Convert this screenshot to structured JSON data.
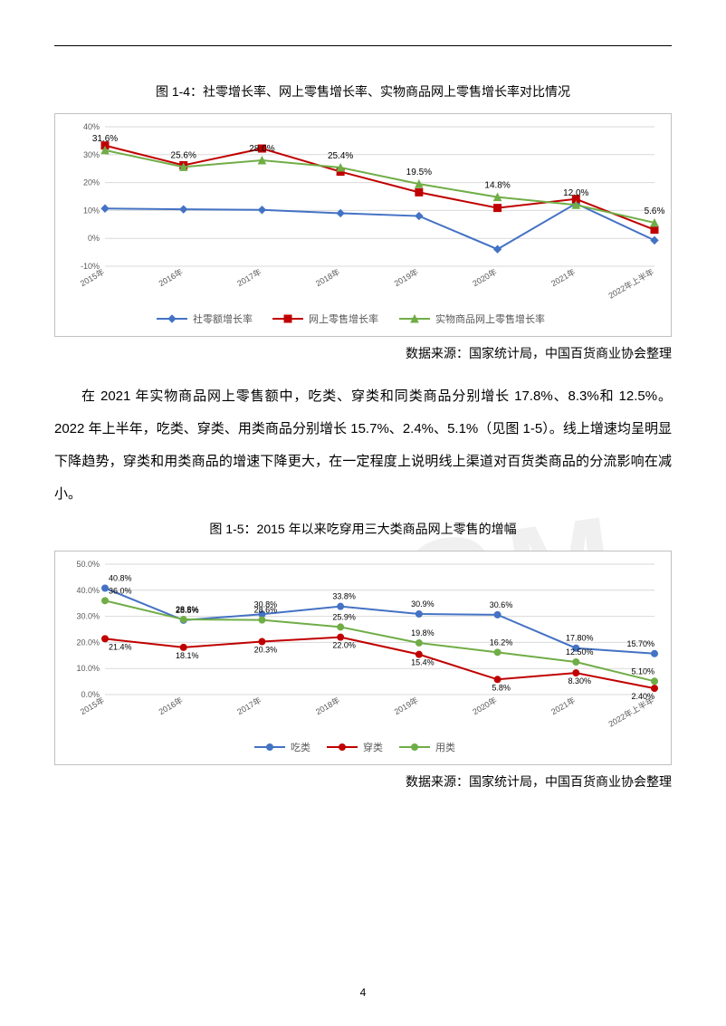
{
  "page_number": "4",
  "watermark_text": "CCAGM",
  "chart1": {
    "type": "line",
    "title": "图 1-4：社零增长率、网上零售增长率、实物商品网上零售增长率对比情况",
    "source": "数据来源：国家统计局，中国百货商业协会整理",
    "categories": [
      "2015年",
      "2016年",
      "2017年",
      "2018年",
      "2019年",
      "2020年",
      "2021年",
      "2022年上半年"
    ],
    "ylim": [
      -10,
      40
    ],
    "ytick_step": 10,
    "ytick_labels": [
      "-10%",
      "0%",
      "10%",
      "20%",
      "30%",
      "40%"
    ],
    "grid_color": "#d9d9d9",
    "background_color": "#ffffff",
    "axis_color": "#808080",
    "label_fontsize": 9,
    "tick_fontsize": 9,
    "data_label_fontsize": 10,
    "line_width": 2,
    "marker_size": 4,
    "series": [
      {
        "name": "社零额增长率",
        "color": "#4472c4",
        "marker": "diamond",
        "values": [
          10.7,
          10.4,
          10.2,
          9.0,
          8.0,
          -3.9,
          12.5,
          -0.7
        ]
      },
      {
        "name": "网上零售增长率",
        "color": "#c00000",
        "marker": "square",
        "values": [
          33.3,
          26.2,
          32.2,
          23.9,
          16.5,
          10.9,
          14.1,
          3.1
        ]
      },
      {
        "name": "实物商品网上零售增长率",
        "color": "#70ad47",
        "marker": "triangle",
        "values": [
          31.6,
          25.6,
          28.0,
          25.4,
          19.5,
          14.8,
          12.0,
          5.6
        ]
      }
    ],
    "data_labels": [
      {
        "x": 0,
        "text": "31.6%"
      },
      {
        "x": 1,
        "text": "25.6%"
      },
      {
        "x": 2,
        "text": "28.0%"
      },
      {
        "x": 3,
        "text": "25.4%"
      },
      {
        "x": 4,
        "text": "19.5%"
      },
      {
        "x": 5,
        "text": "14.8%"
      },
      {
        "x": 6,
        "text": "12.0%"
      },
      {
        "x": 7,
        "text": "5.6%"
      }
    ]
  },
  "paragraph_text": "在 2021 年实物商品网上零售额中，吃类、穿类和同类商品分别增长 17.8%、8.3%和 12.5%。2022 年上半年，吃类、穿类、用类商品分别增长 15.7%、2.4%、5.1%（见图 1-5）。线上增速均呈明显下降趋势，穿类和用类商品的增速下降更大，在一定程度上说明线上渠道对百货类商品的分流影响在减小。",
  "chart2": {
    "type": "line",
    "title": "图 1-5：2015 年以来吃穿用三大类商品网上零售的增幅",
    "source": "数据来源：国家统计局，中国百货商业协会整理",
    "categories": [
      "2015年",
      "2016年",
      "2017年",
      "2018年",
      "2019年",
      "2020年",
      "2021年",
      "2022年上半年"
    ],
    "ylim": [
      0,
      50
    ],
    "ytick_step": 10,
    "ytick_labels": [
      "0.0%",
      "10.0%",
      "20.0%",
      "30.0%",
      "40.0%",
      "50.0%"
    ],
    "grid_color": "#d9d9d9",
    "background_color": "#ffffff",
    "axis_color": "#808080",
    "label_fontsize": 9,
    "tick_fontsize": 9,
    "data_label_fontsize": 9,
    "line_width": 2,
    "marker_size": 3.5,
    "series": [
      {
        "name": "吃类",
        "color": "#4472c4",
        "marker": "circle",
        "values": [
          40.8,
          28.5,
          30.8,
          33.8,
          30.9,
          30.6,
          17.8,
          15.7
        ],
        "labels": [
          "40.8%",
          "28.5%",
          "30.8%",
          "33.8%",
          "30.9%",
          "30.6%",
          "17.80%",
          "15.70%"
        ]
      },
      {
        "name": "穿类",
        "color": "#c00000",
        "marker": "circle",
        "values": [
          21.4,
          18.1,
          20.3,
          22.0,
          15.4,
          5.8,
          8.3,
          2.4
        ],
        "labels": [
          "21.4%",
          "18.1%",
          "20.3%",
          "22.0%",
          "15.4%",
          "5.8%",
          "8.30%",
          "2.40%"
        ]
      },
      {
        "name": "用类",
        "color": "#70ad47",
        "marker": "circle",
        "values": [
          36.0,
          28.8,
          28.6,
          25.9,
          19.8,
          16.2,
          12.5,
          5.1
        ],
        "labels": [
          "36.0%",
          "28.8%",
          "28.6%",
          "25.9%",
          "19.8%",
          "16.2%",
          "12.50%",
          "5.10%"
        ]
      }
    ]
  }
}
